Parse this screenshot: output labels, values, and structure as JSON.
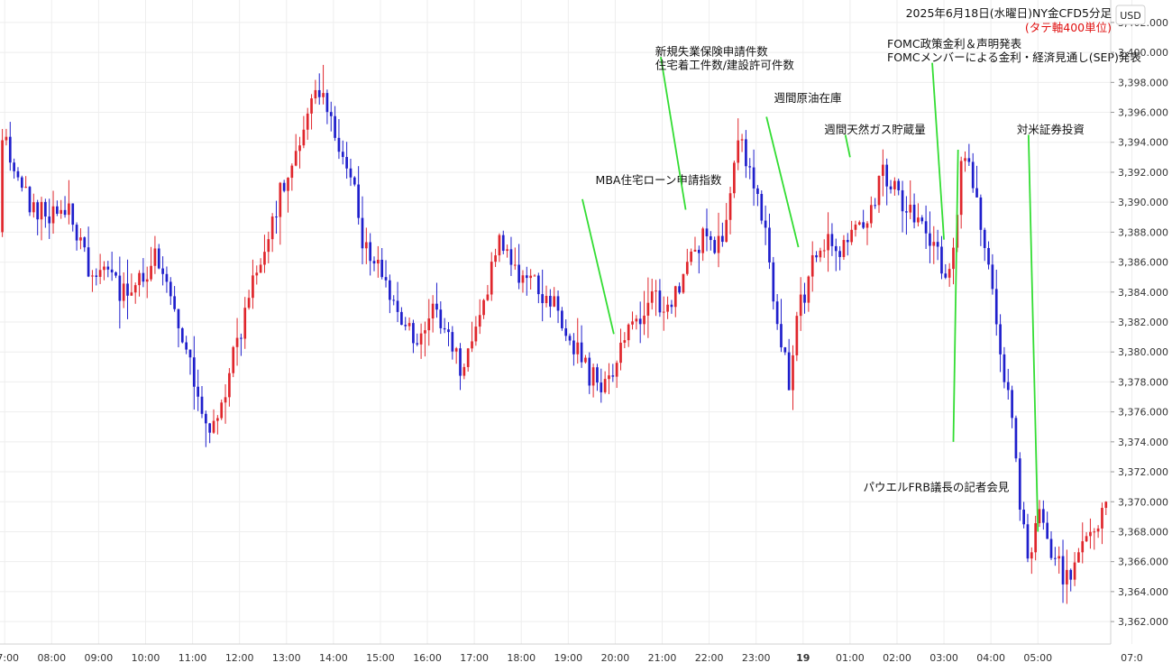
{
  "chart_data": {
    "type": "candlestick",
    "title": "2025年6月18日(水曜日)NY金CFD5分足",
    "subtitle": "(タテ軸400単位)",
    "currency": "USD",
    "ylim": [
      3360.5,
      3403.5
    ],
    "y_ticks": [
      3362,
      3364,
      3366,
      3368,
      3370,
      3372,
      3374,
      3376,
      3378,
      3380,
      3382,
      3384,
      3386,
      3388,
      3390,
      3392,
      3394,
      3396,
      3398,
      3400,
      3402
    ],
    "y_tick_labels": [
      "3,362.000",
      "3,364.000",
      "3,366.000",
      "3,368.000",
      "3,370.000",
      "3,372.000",
      "3,374.000",
      "3,376.000",
      "3,378.000",
      "3,380.000",
      "3,382.000",
      "3,384.000",
      "3,386.000",
      "3,388.000",
      "3,390.000",
      "3,392.000",
      "3,394.000",
      "3,396.000",
      "3,398.000",
      "3,400.000",
      "3,402.000"
    ],
    "x_ticks": [
      {
        "label": "07:00",
        "h": 7
      },
      {
        "label": "08:00",
        "h": 8
      },
      {
        "label": "09:00",
        "h": 9
      },
      {
        "label": "10:00",
        "h": 10
      },
      {
        "label": "11:00",
        "h": 11
      },
      {
        "label": "12:00",
        "h": 12
      },
      {
        "label": "13:00",
        "h": 13
      },
      {
        "label": "14:00",
        "h": 14
      },
      {
        "label": "15:00",
        "h": 15
      },
      {
        "label": "16:00",
        "h": 16
      },
      {
        "label": "17:00",
        "h": 17
      },
      {
        "label": "18:00",
        "h": 18
      },
      {
        "label": "19:00",
        "h": 19
      },
      {
        "label": "20:00",
        "h": 20
      },
      {
        "label": "21:00",
        "h": 21
      },
      {
        "label": "22:00",
        "h": 22
      },
      {
        "label": "23:00",
        "h": 23
      },
      {
        "label": "19",
        "h": 24,
        "bold": true
      },
      {
        "label": "01:00",
        "h": 25
      },
      {
        "label": "02:00",
        "h": 26
      },
      {
        "label": "03:00",
        "h": 27
      },
      {
        "label": "04:00",
        "h": 28
      },
      {
        "label": "05:00",
        "h": 29
      },
      {
        "label": "07:0",
        "h": 31
      }
    ],
    "path": [
      [
        6.95,
        3388
      ],
      [
        7.05,
        3395
      ],
      [
        7.3,
        3392
      ],
      [
        7.6,
        3390
      ],
      [
        8.0,
        3389
      ],
      [
        8.3,
        3390
      ],
      [
        8.6,
        3388
      ],
      [
        9.0,
        3385
      ],
      [
        9.3,
        3386
      ],
      [
        9.6,
        3384
      ],
      [
        10.0,
        3385
      ],
      [
        10.3,
        3386
      ],
      [
        10.6,
        3384
      ],
      [
        10.9,
        3381
      ],
      [
        11.1,
        3378
      ],
      [
        11.3,
        3376
      ],
      [
        11.5,
        3375
      ],
      [
        11.7,
        3376
      ],
      [
        12.0,
        3380
      ],
      [
        12.3,
        3384
      ],
      [
        12.6,
        3386
      ],
      [
        12.9,
        3390
      ],
      [
        13.2,
        3392
      ],
      [
        13.5,
        3395
      ],
      [
        13.7,
        3397
      ],
      [
        13.9,
        3396
      ],
      [
        14.2,
        3394
      ],
      [
        14.5,
        3391
      ],
      [
        14.7,
        3387
      ],
      [
        15.0,
        3386
      ],
      [
        15.3,
        3384
      ],
      [
        15.6,
        3382
      ],
      [
        15.9,
        3381
      ],
      [
        16.2,
        3383
      ],
      [
        16.5,
        3381
      ],
      [
        16.8,
        3379
      ],
      [
        17.0,
        3381
      ],
      [
        17.3,
        3384
      ],
      [
        17.6,
        3387
      ],
      [
        17.9,
        3386
      ],
      [
        18.2,
        3385
      ],
      [
        18.5,
        3384
      ],
      [
        18.8,
        3383
      ],
      [
        19.1,
        3381
      ],
      [
        19.4,
        3379
      ],
      [
        19.7,
        3378
      ],
      [
        20.0,
        3378
      ],
      [
        20.2,
        3381
      ],
      [
        20.5,
        3382
      ],
      [
        20.8,
        3384
      ],
      [
        21.1,
        3383
      ],
      [
        21.4,
        3384
      ],
      [
        21.7,
        3386
      ],
      [
        22.0,
        3388
      ],
      [
        22.2,
        3386
      ],
      [
        22.5,
        3390
      ],
      [
        22.7,
        3394
      ],
      [
        22.9,
        3393
      ],
      [
        23.1,
        3391
      ],
      [
        23.3,
        3388
      ],
      [
        23.5,
        3382
      ],
      [
        23.65,
        3380
      ],
      [
        23.8,
        3378
      ],
      [
        24.0,
        3383
      ],
      [
        24.3,
        3386
      ],
      [
        24.6,
        3387
      ],
      [
        24.9,
        3386
      ],
      [
        25.1,
        3388
      ],
      [
        25.4,
        3389
      ],
      [
        25.6,
        3390
      ],
      [
        25.8,
        3392
      ],
      [
        26.0,
        3391
      ],
      [
        26.3,
        3390
      ],
      [
        26.6,
        3389
      ],
      [
        26.9,
        3387
      ],
      [
        27.1,
        3385
      ],
      [
        27.3,
        3387
      ],
      [
        27.45,
        3393
      ],
      [
        27.7,
        3391
      ],
      [
        27.9,
        3388
      ],
      [
        28.1,
        3384
      ],
      [
        28.3,
        3379
      ],
      [
        28.5,
        3376
      ],
      [
        28.7,
        3370
      ],
      [
        28.9,
        3366
      ],
      [
        29.1,
        3370
      ],
      [
        29.3,
        3367
      ],
      [
        29.5,
        3366
      ],
      [
        29.7,
        3365
      ],
      [
        29.9,
        3366
      ],
      [
        30.1,
        3367
      ],
      [
        30.3,
        3368
      ],
      [
        30.45,
        3369
      ],
      [
        30.5,
        3370
      ]
    ],
    "annotations": [
      {
        "lines": [
          "MBA住宅ローン申請指数"
        ],
        "x": 19.58,
        "y": 3391.2,
        "pt": [
          19.97,
          3381.2
        ],
        "from": [
          19.3,
          3390.2
        ]
      },
      {
        "lines": [
          "新規失業保険申請件数",
          "住宅着工件数/建設許可件数"
        ],
        "x": 20.85,
        "y": 3399.8,
        "pt": [
          21.5,
          3389.5
        ],
        "from": [
          20.97,
          3399.7
        ]
      },
      {
        "lines": [
          "週間原油在庫"
        ],
        "x": 23.38,
        "y": 3396.7,
        "pt": [
          23.9,
          3387.0
        ],
        "from": [
          23.22,
          3395.7
        ]
      },
      {
        "lines": [
          "週間天然ガス貯蔵量"
        ],
        "x": 24.45,
        "y": 3394.6,
        "pt": [
          25.0,
          3393.0
        ],
        "from": [
          24.9,
          3394.5
        ]
      },
      {
        "lines": [
          "FOMC政策金利＆声明発表",
          "FOMCメンバーによる金利・経済見通し(SEP)発表"
        ],
        "x": 25.79,
        "y": 3400.3,
        "pt": [
          27.0,
          3387.5
        ],
        "from": [
          26.75,
          3399.3
        ]
      },
      {
        "lines": [
          "対米証券投資"
        ],
        "x": 28.55,
        "y": 3394.6,
        "pt": [
          29.0,
          3368.0
        ],
        "from": [
          28.8,
          3394.5
        ]
      },
      {
        "lines": [
          "パウエルFRB議長の記者会見"
        ],
        "x": 25.28,
        "y": 3370.7,
        "pt": [
          27.2,
          3374.0
        ],
        "from": [
          27.3,
          3393.5
        ]
      }
    ]
  }
}
